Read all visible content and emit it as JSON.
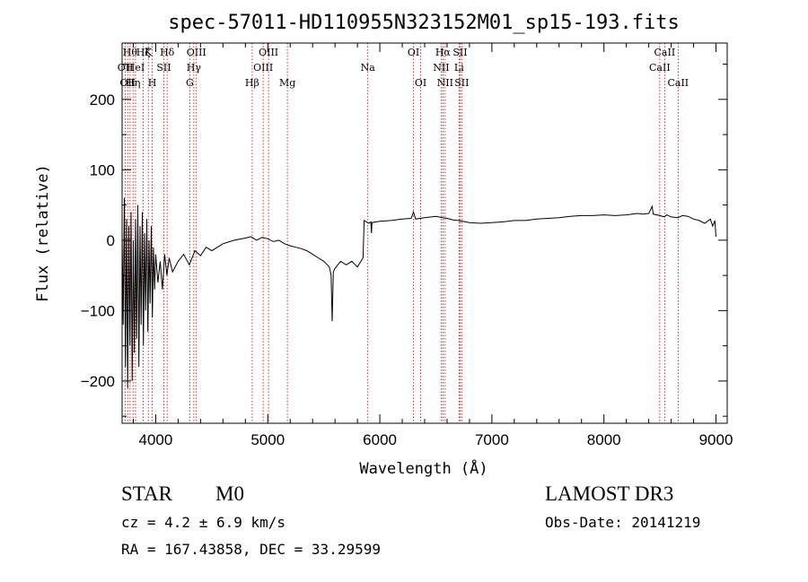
{
  "header": {
    "title": "spec-57011-HD110955N323152M01_sp15-193.fits"
  },
  "info": {
    "object_class": "STAR",
    "subclass": "M0",
    "cz": "cz = 4.2 ± 6.9 km/s",
    "coords": "RA = 167.43858, DEC =  33.29599",
    "survey": "LAMOST DR3",
    "obs_date": "Obs-Date: 20141219"
  },
  "chart_data": {
    "type": "line",
    "title": "spec-57011-HD110955N323152M01_sp15-193.fits",
    "xlabel": "Wavelength (Å)",
    "ylabel": "Flux (relative)",
    "xlim": [
      3700,
      9100
    ],
    "ylim": [
      -260,
      280
    ],
    "xticks": [
      4000,
      5000,
      6000,
      7000,
      8000,
      9000
    ],
    "yticks": [
      -200,
      -100,
      0,
      100,
      200
    ],
    "line_color": "#000000",
    "marker_color": "#cc0000",
    "series": [
      {
        "name": "flux",
        "points": [
          [
            3700,
            10
          ],
          [
            3710,
            -120
          ],
          [
            3720,
            60
          ],
          [
            3730,
            -180
          ],
          [
            3740,
            30
          ],
          [
            3750,
            -210
          ],
          [
            3760,
            20
          ],
          [
            3770,
            -150
          ],
          [
            3780,
            40
          ],
          [
            3790,
            -200
          ],
          [
            3800,
            0
          ],
          [
            3810,
            -160
          ],
          [
            3820,
            30
          ],
          [
            3830,
            -140
          ],
          [
            3840,
            50
          ],
          [
            3850,
            -180
          ],
          [
            3860,
            20
          ],
          [
            3870,
            -120
          ],
          [
            3880,
            40
          ],
          [
            3890,
            -150
          ],
          [
            3900,
            10
          ],
          [
            3910,
            -100
          ],
          [
            3920,
            30
          ],
          [
            3930,
            -130
          ],
          [
            3940,
            0
          ],
          [
            3950,
            -90
          ],
          [
            3960,
            20
          ],
          [
            3970,
            -110
          ],
          [
            3980,
            -10
          ],
          [
            3990,
            -70
          ],
          [
            4000,
            -20
          ],
          [
            4020,
            -60
          ],
          [
            4040,
            -30
          ],
          [
            4060,
            -70
          ],
          [
            4080,
            -20
          ],
          [
            4100,
            -50
          ],
          [
            4120,
            -25
          ],
          [
            4150,
            -45
          ],
          [
            4200,
            -30
          ],
          [
            4250,
            -20
          ],
          [
            4300,
            -35
          ],
          [
            4350,
            -15
          ],
          [
            4400,
            -22
          ],
          [
            4450,
            -10
          ],
          [
            4500,
            -15
          ],
          [
            4600,
            -5
          ],
          [
            4700,
            0
          ],
          [
            4800,
            3
          ],
          [
            4850,
            5
          ],
          [
            4900,
            0
          ],
          [
            4950,
            4
          ],
          [
            5000,
            2
          ],
          [
            5050,
            -2
          ],
          [
            5100,
            0
          ],
          [
            5150,
            -5
          ],
          [
            5200,
            -8
          ],
          [
            5250,
            -10
          ],
          [
            5300,
            -12
          ],
          [
            5350,
            -15
          ],
          [
            5400,
            -20
          ],
          [
            5450,
            -25
          ],
          [
            5500,
            -30
          ],
          [
            5550,
            -38
          ],
          [
            5565,
            -50
          ],
          [
            5575,
            -115
          ],
          [
            5585,
            -45
          ],
          [
            5600,
            -40
          ],
          [
            5650,
            -30
          ],
          [
            5700,
            -35
          ],
          [
            5750,
            -30
          ],
          [
            5800,
            -38
          ],
          [
            5850,
            -25
          ],
          [
            5860,
            28
          ],
          [
            5900,
            24
          ],
          [
            5920,
            26
          ],
          [
            5925,
            10
          ],
          [
            5930,
            25
          ],
          [
            6000,
            27
          ],
          [
            6100,
            28
          ],
          [
            6200,
            30
          ],
          [
            6280,
            31
          ],
          [
            6300,
            40
          ],
          [
            6320,
            30
          ],
          [
            6400,
            32
          ],
          [
            6500,
            34
          ],
          [
            6560,
            32
          ],
          [
            6600,
            31
          ],
          [
            6650,
            29
          ],
          [
            6700,
            28
          ],
          [
            6800,
            25
          ],
          [
            6900,
            24
          ],
          [
            7000,
            25
          ],
          [
            7100,
            26
          ],
          [
            7200,
            28
          ],
          [
            7300,
            28
          ],
          [
            7400,
            30
          ],
          [
            7500,
            31
          ],
          [
            7600,
            32
          ],
          [
            7700,
            34
          ],
          [
            7800,
            35
          ],
          [
            7900,
            35
          ],
          [
            8000,
            36
          ],
          [
            8100,
            35
          ],
          [
            8200,
            36
          ],
          [
            8300,
            38
          ],
          [
            8350,
            37
          ],
          [
            8400,
            38
          ],
          [
            8430,
            48
          ],
          [
            8440,
            37
          ],
          [
            8500,
            35
          ],
          [
            8540,
            33
          ],
          [
            8560,
            36
          ],
          [
            8600,
            33
          ],
          [
            8660,
            32
          ],
          [
            8700,
            35
          ],
          [
            8750,
            34
          ],
          [
            8800,
            30
          ],
          [
            8850,
            28
          ],
          [
            8900,
            24
          ],
          [
            8950,
            30
          ],
          [
            8970,
            20
          ],
          [
            8990,
            28
          ],
          [
            9000,
            5
          ]
        ]
      }
    ],
    "line_markers": [
      {
        "wavelength": 3729,
        "label": "OII",
        "row": 2
      },
      {
        "wavelength": 3750,
        "label": "OII",
        "row": 3
      },
      {
        "wavelength": 3771,
        "label": "Hθ",
        "row": 1
      },
      {
        "wavelength": 3798,
        "label": "Hη",
        "row": 3
      },
      {
        "wavelength": 3820,
        "label": "HeI",
        "row": 2
      },
      {
        "wavelength": 3889,
        "label": "Hζ",
        "row": 1
      },
      {
        "wavelength": 3934,
        "label": "K",
        "row": 1
      },
      {
        "wavelength": 3969,
        "label": "H",
        "row": 3
      },
      {
        "wavelength": 4072,
        "label": "SII",
        "row": 2
      },
      {
        "wavelength": 4102,
        "label": "Hδ",
        "row": 1
      },
      {
        "wavelength": 4304,
        "label": "G",
        "row": 3
      },
      {
        "wavelength": 4340,
        "label": "Hγ",
        "row": 2
      },
      {
        "wavelength": 4363,
        "label": "OIII",
        "row": 1
      },
      {
        "wavelength": 4861,
        "label": "Hβ",
        "row": 3
      },
      {
        "wavelength": 4959,
        "label": "OIII",
        "row": 2
      },
      {
        "wavelength": 5007,
        "label": "OIII",
        "row": 1
      },
      {
        "wavelength": 5175,
        "label": "Mg",
        "row": 3
      },
      {
        "wavelength": 5893,
        "label": "Na",
        "row": 2
      },
      {
        "wavelength": 6300,
        "label": "OI",
        "row": 1
      },
      {
        "wavelength": 6364,
        "label": "OI",
        "row": 3
      },
      {
        "wavelength": 6548,
        "label": "NII",
        "row": 2
      },
      {
        "wavelength": 6563,
        "label": "Hα",
        "row": 1
      },
      {
        "wavelength": 6583,
        "label": "NII",
        "row": 3
      },
      {
        "wavelength": 6707,
        "label": "Li",
        "row": 2
      },
      {
        "wavelength": 6716,
        "label": "SII",
        "row": 1
      },
      {
        "wavelength": 6731,
        "label": "SII",
        "row": 3
      },
      {
        "wavelength": 8498,
        "label": "CaII",
        "row": 2
      },
      {
        "wavelength": 8542,
        "label": "CaII",
        "row": 1
      },
      {
        "wavelength": 8662,
        "label": "CaII",
        "row": 3
      }
    ]
  }
}
